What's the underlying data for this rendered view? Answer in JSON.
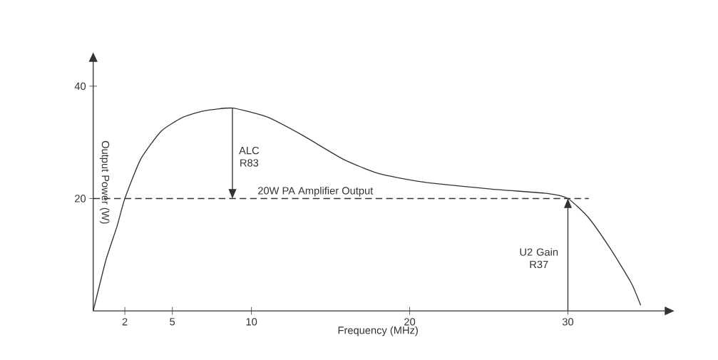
{
  "chart_data": {
    "type": "line",
    "xlabel": "Frequency (MHz)",
    "ylabel": "Output Power (W)",
    "x": [
      0,
      0.8,
      1.5,
      2,
      3,
      4.3,
      5.7,
      7,
      8.8,
      11,
      13.2,
      15.8,
      18,
      20.7,
      25.1,
      28.7,
      30,
      31.3,
      32.7,
      34,
      34.6
    ],
    "series": [
      {
        "color": "#333333",
        "values": [
          0,
          9,
          15,
          20,
          27,
          32,
          34.5,
          35.6,
          36.1,
          34.5,
          31.3,
          27,
          24.5,
          23,
          21.7,
          20.9,
          20,
          16.6,
          11,
          5,
          1
        ]
      }
    ],
    "xlim": [
      0,
      36
    ],
    "ylim": [
      0,
      44
    ],
    "xticks": [
      2,
      5,
      10,
      20,
      30
    ],
    "yticks": [
      20,
      40
    ],
    "ref_lines": [
      {
        "axis": "y",
        "value": 20,
        "label": "20W PA Amplifier Output",
        "color": "#333333",
        "line_style": "dashed"
      }
    ],
    "annotations": [
      "ALC R83",
      "U2 Gain R37"
    ],
    "grid": false,
    "marker": "none",
    "line_style": "solid"
  }
}
